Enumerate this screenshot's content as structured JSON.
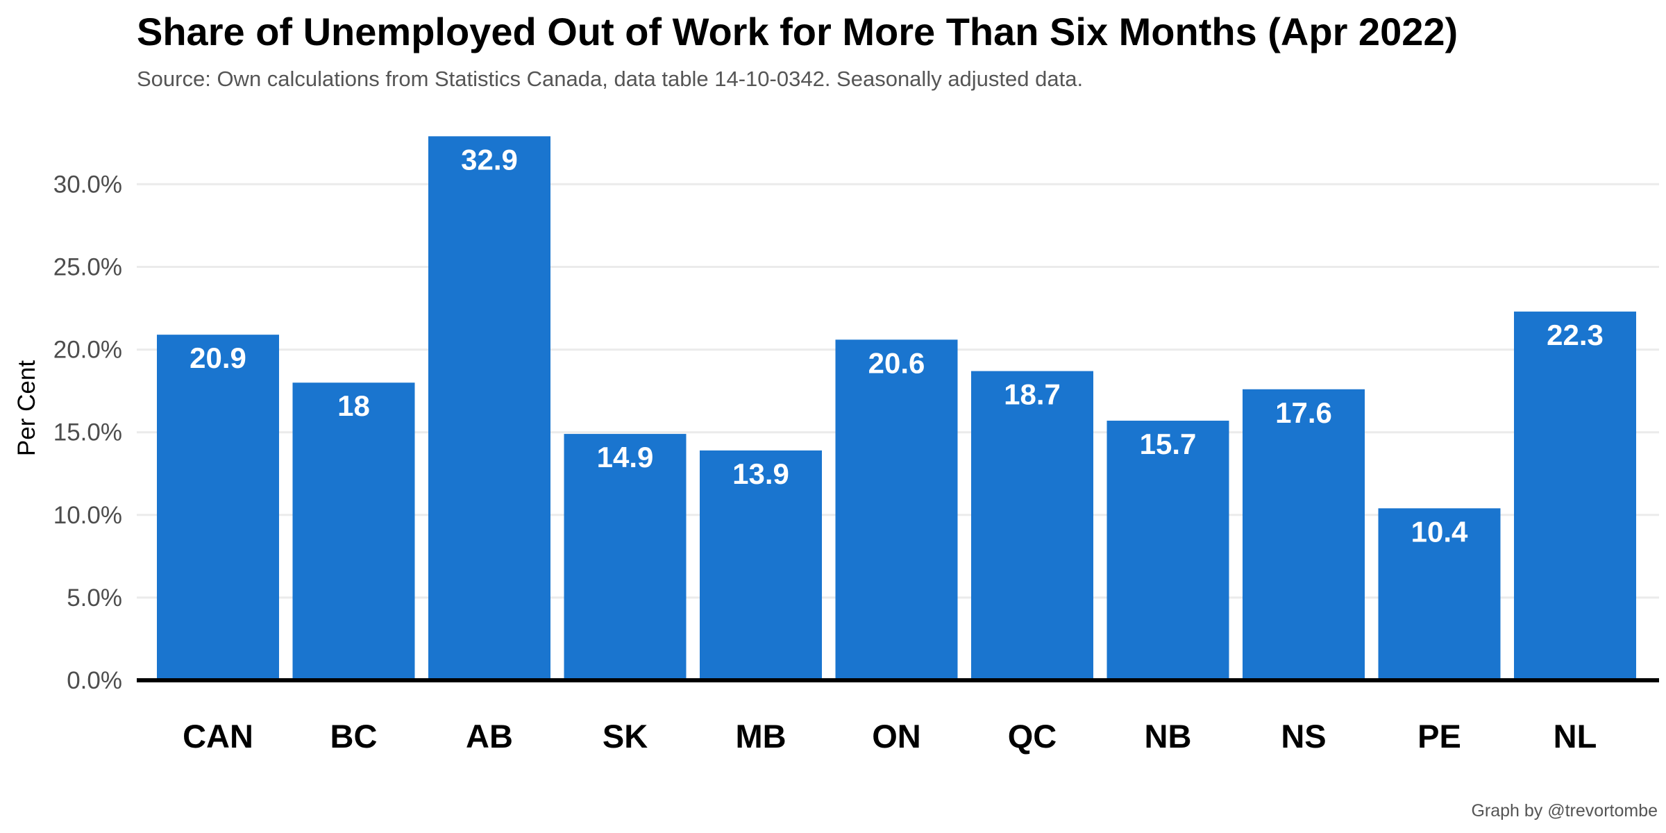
{
  "chart_data": {
    "type": "bar",
    "title": "Share of Unemployed Out of Work for More Than Six Months (Apr 2022)",
    "subtitle": "Source: Own calculations from Statistics Canada, data table 14-10-0342. Seasonally adjusted data.",
    "caption": "Graph by @trevortombe",
    "xlabel": "",
    "ylabel": "Per Cent",
    "categories": [
      "CAN",
      "BC",
      "AB",
      "SK",
      "MB",
      "ON",
      "QC",
      "NB",
      "NS",
      "PE",
      "NL"
    ],
    "values": [
      20.9,
      18,
      32.9,
      14.9,
      13.9,
      20.6,
      18.7,
      15.7,
      17.6,
      10.4,
      22.3
    ],
    "value_labels": [
      "20.9",
      "18",
      "32.9",
      "14.9",
      "13.9",
      "20.6",
      "18.7",
      "15.7",
      "17.6",
      "10.4",
      "22.3"
    ],
    "yticks": [
      0,
      5,
      10,
      15,
      20,
      25,
      30
    ],
    "ytick_labels": [
      "0.0%",
      "5.0%",
      "10.0%",
      "15.0%",
      "20.0%",
      "25.0%",
      "30.0%"
    ],
    "ylim": [
      0,
      33
    ],
    "grid": "horizontal",
    "legend": "none",
    "colors": {
      "bar": "#1a75cf",
      "grid": "#ebebeb",
      "baseline": "#000000",
      "value_text": "#ffffff"
    }
  }
}
